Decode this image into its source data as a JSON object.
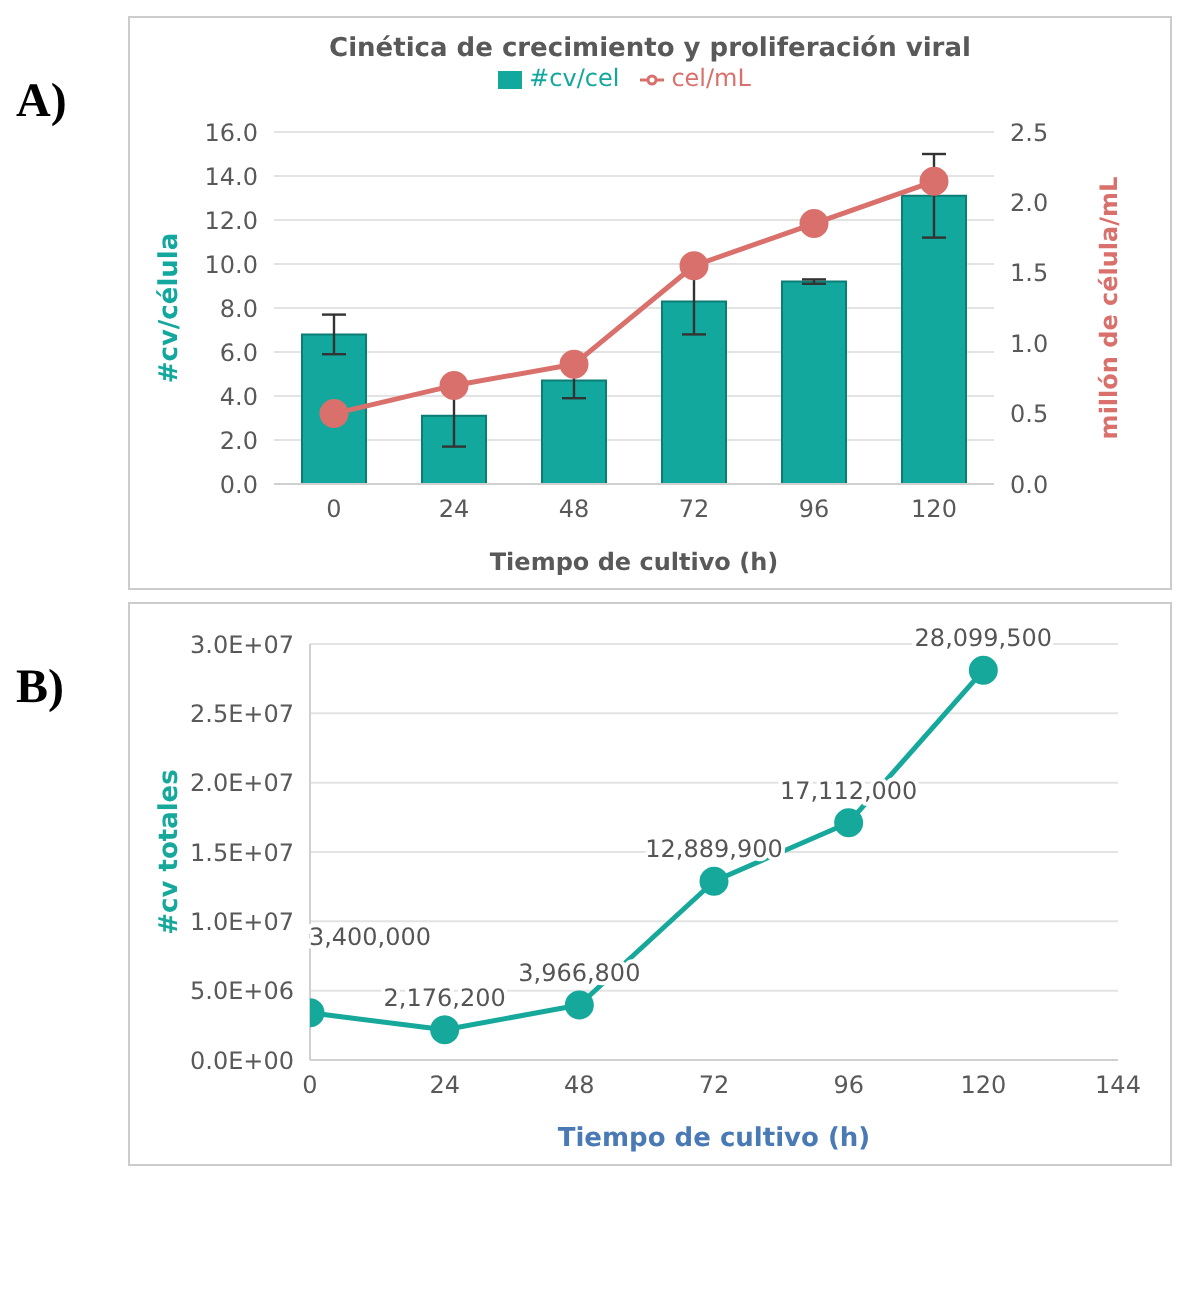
{
  "chart_data": [
    {
      "type": "bar",
      "title": "Cinética de crecimiento y proliferación viral",
      "annotations": [
        "A)"
      ],
      "xlabel": "Tiempo de cultivo (h)",
      "ylabel": "#cv/célula",
      "y2label": "millón de célula/mL",
      "categories": [
        "0",
        "24",
        "48",
        "72",
        "96",
        "120"
      ],
      "series": [
        {
          "name": "#cv/cel",
          "color": "#13a89e",
          "values": [
            6.8,
            3.1,
            4.7,
            8.3,
            9.2,
            13.1
          ],
          "errors": [
            0.9,
            1.4,
            0.8,
            1.5,
            0.1,
            1.9
          ]
        },
        {
          "name": "cel/mL",
          "type": "line",
          "axis": "y2",
          "color": "#d9706b",
          "values": [
            0.5,
            0.7,
            0.85,
            1.55,
            1.85,
            2.15
          ]
        }
      ],
      "ylim": [
        0,
        16
      ],
      "yticks": [
        {
          "value": 0,
          "label": "0.0"
        },
        {
          "value": 2,
          "label": "2.0"
        },
        {
          "value": 4,
          "label": "4.0"
        },
        {
          "value": 6,
          "label": "6.0"
        },
        {
          "value": 8,
          "label": "8.0"
        },
        {
          "value": 10,
          "label": "10.0"
        },
        {
          "value": 12,
          "label": "12.0"
        },
        {
          "value": 14,
          "label": "14.0"
        },
        {
          "value": 16,
          "label": "16.0"
        }
      ],
      "y2lim": [
        0,
        2.5
      ],
      "y2ticks": [
        {
          "value": 0,
          "label": "0.0"
        },
        {
          "value": 0.5,
          "label": "0.5"
        },
        {
          "value": 1,
          "label": "1.0"
        },
        {
          "value": 1.5,
          "label": "1.5"
        },
        {
          "value": 2,
          "label": "2.0"
        },
        {
          "value": 2.5,
          "label": "2.5"
        }
      ],
      "grid": "y",
      "legend": "top",
      "marker": "circle"
    },
    {
      "type": "line",
      "annotations": [
        "B)"
      ],
      "xlabel": "Tiempo de cultivo (h)",
      "ylabel": "#cv totales",
      "x": [
        0,
        24,
        48,
        72,
        96,
        120
      ],
      "series": [
        {
          "color": "#16a99b",
          "values": [
            3400000,
            2176200,
            3966800,
            12889900,
            17112000,
            28099500
          ],
          "value_labels": [
            "3,400,000",
            "2,176,200",
            "3,966,800",
            "12,889,900",
            "17,112,000",
            "28,099,500"
          ]
        }
      ],
      "xlim": [
        0,
        144
      ],
      "xticks": [
        0,
        24,
        48,
        72,
        96,
        120,
        144
      ],
      "ylim": [
        0,
        30000000
      ],
      "yticks": [
        {
          "value": 0,
          "label": "0.0E+00"
        },
        {
          "value": 5000000,
          "label": "5.0E+06"
        },
        {
          "value": 10000000,
          "label": "1.0E+07"
        },
        {
          "value": 15000000,
          "label": "1.5E+07"
        },
        {
          "value": 20000000,
          "label": "2.0E+07"
        },
        {
          "value": 25000000,
          "label": "2.5E+07"
        },
        {
          "value": 30000000,
          "label": "3.0E+07"
        }
      ],
      "grid": "y",
      "marker": "circle"
    }
  ]
}
